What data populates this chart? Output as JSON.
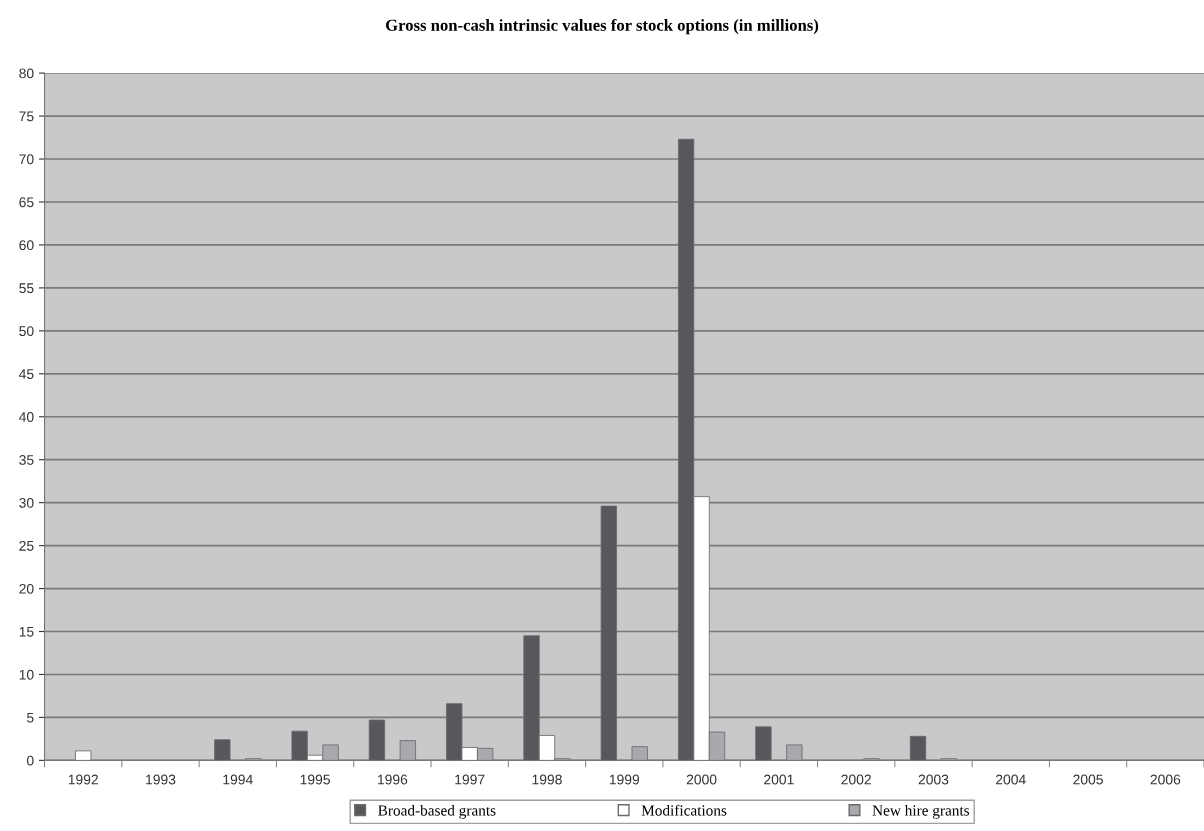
{
  "chart_data": {
    "type": "bar",
    "title": "Gross non-cash intrinsic values for stock options (in millions)",
    "categories": [
      "1992",
      "1993",
      "1994",
      "1995",
      "1996",
      "1997",
      "1998",
      "1999",
      "2000",
      "2001",
      "2002",
      "2003",
      "2004",
      "2005",
      "2006"
    ],
    "series": [
      {
        "name": "Broad-based grants",
        "color": "#58585c",
        "values": [
          0,
          null,
          2.4,
          3.4,
          4.7,
          6.6,
          14.5,
          29.6,
          72.3,
          3.9,
          0,
          2.8,
          0,
          0,
          0
        ]
      },
      {
        "name": "Modifications",
        "color": "#ffffff",
        "values": [
          1.1,
          null,
          0,
          0.6,
          0,
          1.5,
          2.9,
          0,
          30.7,
          0,
          0,
          null,
          0,
          0,
          0
        ]
      },
      {
        "name": "New hire grants",
        "color": "#a8a9ac",
        "values": [
          null,
          null,
          0.2,
          1.8,
          2.3,
          1.4,
          0.2,
          1.6,
          3.3,
          1.8,
          0.2,
          0.2,
          0,
          0,
          0
        ]
      }
    ],
    "ylim": [
      0,
      80
    ],
    "yticks": [
      0,
      5,
      10,
      15,
      20,
      25,
      30,
      35,
      40,
      45,
      50,
      55,
      60,
      65,
      70,
      75,
      80
    ],
    "grid": "y",
    "legend": "bottom"
  }
}
